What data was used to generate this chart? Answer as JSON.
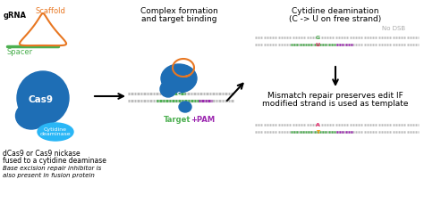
{
  "bg_color": "#ffffff",
  "panel1": {
    "grna_label": "gRNA",
    "scaffold_label": "Scaffold",
    "spacer_label": "Spacer",
    "cas9_label": "Cas9",
    "cytidine_label": "Cytidine\ndeaminase",
    "desc1": "dCas9 or Cas9 nickase",
    "desc2": "fused to a cytidine deaminase",
    "desc3": "Base excision repair inhibitor is",
    "desc4": "also present in fusion protein",
    "scaffold_color": "#e87722",
    "spacer_color": "#4caf50",
    "cas9_color": "#1e6eb5",
    "cytidine_color": "#29b6f6",
    "grna_color": "#000000"
  },
  "panel2": {
    "title1": "Complex formation",
    "title2": "and target binding",
    "target_label": "Target",
    "pam_label": "+PAM",
    "target_color": "#4caf50",
    "pam_color": "#9c27b0"
  },
  "panel3": {
    "title1": "Cytidine deamination",
    "title2": "(C -> U on free strand)",
    "no_dsb_label": "No DSB",
    "mismatch_title1": "Mismatch repair preserves edit IF",
    "mismatch_title2": "modified strand is used as template"
  }
}
